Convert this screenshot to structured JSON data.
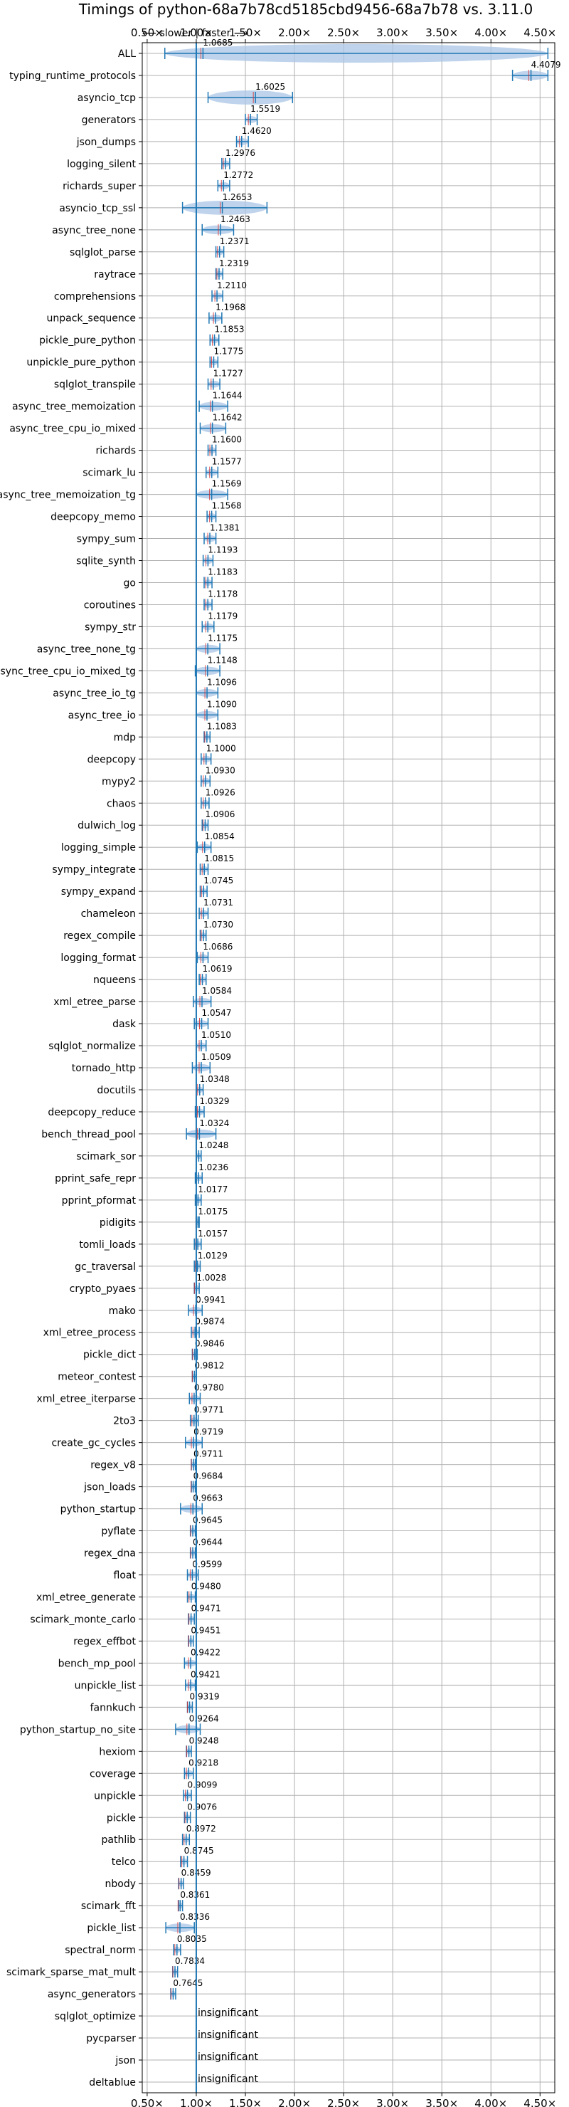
{
  "chart_data": {
    "type": "violin",
    "title": "Timings of python-68a7b78cd5185cbd9456-68a7b78 vs. 3.11.0",
    "subtitle": "⟵ slower  |  faster ⟶",
    "xlabel": "",
    "ylabel": "",
    "xlim": [
      0.45,
      4.65
    ],
    "xticks": [
      0.5,
      1.0,
      1.5,
      2.0,
      2.5,
      3.0,
      3.5,
      4.0,
      4.5
    ],
    "xtick_labels": [
      "0.50×",
      "1.00×",
      "1.50×",
      "2.00×",
      "2.50×",
      "3.00×",
      "3.50×",
      "4.00×",
      "4.50×"
    ],
    "reference_line": 1.0,
    "grid": true,
    "insignificant_label": "insignificant",
    "benchmarks": [
      {
        "name": "ALL",
        "value": 1.0685,
        "label": "1.0685",
        "lo": 0.68,
        "hi": 4.58
      },
      {
        "name": "typing_runtime_protocols",
        "value": 4.4079,
        "label": "4.4079",
        "lo": 4.22,
        "hi": 4.58
      },
      {
        "name": "asyncio_tcp",
        "value": 1.6025,
        "label": "1.6025",
        "lo": 1.12,
        "hi": 1.98
      },
      {
        "name": "generators",
        "value": 1.5519,
        "label": "1.5519",
        "lo": 1.5,
        "hi": 1.62
      },
      {
        "name": "json_dumps",
        "value": 1.462,
        "label": "1.4620",
        "lo": 1.41,
        "hi": 1.53
      },
      {
        "name": "logging_silent",
        "value": 1.2976,
        "label": "1.2976",
        "lo": 1.26,
        "hi": 1.34
      },
      {
        "name": "richards_super",
        "value": 1.2772,
        "label": "1.2772",
        "lo": 1.22,
        "hi": 1.34
      },
      {
        "name": "asyncio_tcp_ssl",
        "value": 1.2653,
        "label": "1.2653",
        "lo": 0.86,
        "hi": 1.72
      },
      {
        "name": "async_tree_none",
        "value": 1.2463,
        "label": "1.2463",
        "lo": 1.06,
        "hi": 1.38
      },
      {
        "name": "sqlglot_parse",
        "value": 1.2371,
        "label": "1.2371",
        "lo": 1.2,
        "hi": 1.28
      },
      {
        "name": "raytrace",
        "value": 1.2319,
        "label": "1.2319",
        "lo": 1.2,
        "hi": 1.27
      },
      {
        "name": "comprehensions",
        "value": 1.211,
        "label": "1.2110",
        "lo": 1.16,
        "hi": 1.27
      },
      {
        "name": "unpack_sequence",
        "value": 1.1968,
        "label": "1.1968",
        "lo": 1.13,
        "hi": 1.26
      },
      {
        "name": "pickle_pure_python",
        "value": 1.1853,
        "label": "1.1853",
        "lo": 1.14,
        "hi": 1.23
      },
      {
        "name": "unpickle_pure_python",
        "value": 1.1775,
        "label": "1.1775",
        "lo": 1.14,
        "hi": 1.22
      },
      {
        "name": "sqlglot_transpile",
        "value": 1.1727,
        "label": "1.1727",
        "lo": 1.12,
        "hi": 1.24
      },
      {
        "name": "async_tree_memoization",
        "value": 1.1644,
        "label": "1.1644",
        "lo": 1.03,
        "hi": 1.32
      },
      {
        "name": "async_tree_cpu_io_mixed",
        "value": 1.1642,
        "label": "1.1642",
        "lo": 1.04,
        "hi": 1.3
      },
      {
        "name": "richards",
        "value": 1.16,
        "label": "1.1600",
        "lo": 1.12,
        "hi": 1.2
      },
      {
        "name": "scimark_lu",
        "value": 1.1577,
        "label": "1.1577",
        "lo": 1.1,
        "hi": 1.22
      },
      {
        "name": "async_tree_memoization_tg",
        "value": 1.1569,
        "label": "1.1569",
        "lo": 1.0,
        "hi": 1.32
      },
      {
        "name": "deepcopy_memo",
        "value": 1.1568,
        "label": "1.1568",
        "lo": 1.11,
        "hi": 1.2
      },
      {
        "name": "sympy_sum",
        "value": 1.1381,
        "label": "1.1381",
        "lo": 1.08,
        "hi": 1.2
      },
      {
        "name": "sqlite_synth",
        "value": 1.1193,
        "label": "1.1193",
        "lo": 1.07,
        "hi": 1.17
      },
      {
        "name": "go",
        "value": 1.1183,
        "label": "1.1183",
        "lo": 1.08,
        "hi": 1.16
      },
      {
        "name": "coroutines",
        "value": 1.1178,
        "label": "1.1178",
        "lo": 1.08,
        "hi": 1.16
      },
      {
        "name": "sympy_str",
        "value": 1.1179,
        "label": "1.1179",
        "lo": 1.06,
        "hi": 1.18
      },
      {
        "name": "async_tree_none_tg",
        "value": 1.1175,
        "label": "1.1175",
        "lo": 1.0,
        "hi": 1.24
      },
      {
        "name": "async_tree_cpu_io_mixed_tg",
        "value": 1.1148,
        "label": "1.1148",
        "lo": 0.99,
        "hi": 1.24
      },
      {
        "name": "async_tree_io_tg",
        "value": 1.1096,
        "label": "1.1096",
        "lo": 1.0,
        "hi": 1.22
      },
      {
        "name": "async_tree_io",
        "value": 1.109,
        "label": "1.1090",
        "lo": 1.0,
        "hi": 1.22
      },
      {
        "name": "mdp",
        "value": 1.1083,
        "label": "1.1083",
        "lo": 1.08,
        "hi": 1.14
      },
      {
        "name": "deepcopy",
        "value": 1.1,
        "label": "1.1000",
        "lo": 1.05,
        "hi": 1.15
      },
      {
        "name": "mypy2",
        "value": 1.093,
        "label": "1.0930",
        "lo": 1.05,
        "hi": 1.14
      },
      {
        "name": "chaos",
        "value": 1.0926,
        "label": "1.0926",
        "lo": 1.05,
        "hi": 1.13
      },
      {
        "name": "dulwich_log",
        "value": 1.0906,
        "label": "1.0906",
        "lo": 1.06,
        "hi": 1.12
      },
      {
        "name": "logging_simple",
        "value": 1.0854,
        "label": "1.0854",
        "lo": 1.01,
        "hi": 1.15
      },
      {
        "name": "sympy_integrate",
        "value": 1.0815,
        "label": "1.0815",
        "lo": 1.04,
        "hi": 1.12
      },
      {
        "name": "sympy_expand",
        "value": 1.0745,
        "label": "1.0745",
        "lo": 1.04,
        "hi": 1.11
      },
      {
        "name": "chameleon",
        "value": 1.0731,
        "label": "1.0731",
        "lo": 1.03,
        "hi": 1.12
      },
      {
        "name": "regex_compile",
        "value": 1.073,
        "label": "1.0730",
        "lo": 1.04,
        "hi": 1.1
      },
      {
        "name": "logging_format",
        "value": 1.0686,
        "label": "1.0686",
        "lo": 1.01,
        "hi": 1.12
      },
      {
        "name": "nqueens",
        "value": 1.0619,
        "label": "1.0619",
        "lo": 1.03,
        "hi": 1.1
      },
      {
        "name": "xml_etree_parse",
        "value": 1.0584,
        "label": "1.0584",
        "lo": 0.97,
        "hi": 1.15
      },
      {
        "name": "dask",
        "value": 1.0547,
        "label": "1.0547",
        "lo": 0.98,
        "hi": 1.12
      },
      {
        "name": "sqlglot_normalize",
        "value": 1.051,
        "label": "1.0510",
        "lo": 1.0,
        "hi": 1.1
      },
      {
        "name": "tornado_http",
        "value": 1.0509,
        "label": "1.0509",
        "lo": 0.96,
        "hi": 1.14
      },
      {
        "name": "docutils",
        "value": 1.0348,
        "label": "1.0348",
        "lo": 1.0,
        "hi": 1.07
      },
      {
        "name": "deepcopy_reduce",
        "value": 1.0329,
        "label": "1.0329",
        "lo": 0.99,
        "hi": 1.08
      },
      {
        "name": "bench_thread_pool",
        "value": 1.0324,
        "label": "1.0324",
        "lo": 0.9,
        "hi": 1.2
      },
      {
        "name": "scimark_sor",
        "value": 1.0248,
        "label": "1.0248",
        "lo": 1.0,
        "hi": 1.05
      },
      {
        "name": "pprint_safe_repr",
        "value": 1.0236,
        "label": "1.0236",
        "lo": 0.99,
        "hi": 1.06
      },
      {
        "name": "pprint_pformat",
        "value": 1.0177,
        "label": "1.0177",
        "lo": 0.99,
        "hi": 1.05
      },
      {
        "name": "pidigits",
        "value": 1.0175,
        "label": "1.0175",
        "lo": 1.0,
        "hi": 1.03
      },
      {
        "name": "tomli_loads",
        "value": 1.0157,
        "label": "1.0157",
        "lo": 0.98,
        "hi": 1.05
      },
      {
        "name": "gc_traversal",
        "value": 1.0129,
        "label": "1.0129",
        "lo": 0.98,
        "hi": 1.04
      },
      {
        "name": "crypto_pyaes",
        "value": 1.0028,
        "label": "1.0028",
        "lo": 0.98,
        "hi": 1.03
      },
      {
        "name": "mako",
        "value": 0.9941,
        "label": "0.9941",
        "lo": 0.92,
        "hi": 1.06
      },
      {
        "name": "xml_etree_process",
        "value": 0.9874,
        "label": "0.9874",
        "lo": 0.95,
        "hi": 1.03
      },
      {
        "name": "pickle_dict",
        "value": 0.9846,
        "label": "0.9846",
        "lo": 0.96,
        "hi": 1.01
      },
      {
        "name": "meteor_contest",
        "value": 0.9812,
        "label": "0.9812",
        "lo": 0.96,
        "hi": 1.0
      },
      {
        "name": "xml_etree_iterparse",
        "value": 0.978,
        "label": "0.9780",
        "lo": 0.93,
        "hi": 1.04
      },
      {
        "name": "2to3",
        "value": 0.9771,
        "label": "0.9771",
        "lo": 0.94,
        "hi": 1.02
      },
      {
        "name": "create_gc_cycles",
        "value": 0.9719,
        "label": "0.9719",
        "lo": 0.89,
        "hi": 1.06
      },
      {
        "name": "regex_v8",
        "value": 0.9711,
        "label": "0.9711",
        "lo": 0.95,
        "hi": 0.99
      },
      {
        "name": "json_loads",
        "value": 0.9684,
        "label": "0.9684",
        "lo": 0.95,
        "hi": 0.99
      },
      {
        "name": "python_startup",
        "value": 0.9663,
        "label": "0.9663",
        "lo": 0.84,
        "hi": 1.06
      },
      {
        "name": "pyflate",
        "value": 0.9645,
        "label": "0.9645",
        "lo": 0.94,
        "hi": 0.99
      },
      {
        "name": "regex_dna",
        "value": 0.9644,
        "label": "0.9644",
        "lo": 0.94,
        "hi": 0.99
      },
      {
        "name": "float",
        "value": 0.9599,
        "label": "0.9599",
        "lo": 0.91,
        "hi": 1.02
      },
      {
        "name": "xml_etree_generate",
        "value": 0.948,
        "label": "0.9480",
        "lo": 0.91,
        "hi": 0.99
      },
      {
        "name": "scimark_monte_carlo",
        "value": 0.9471,
        "label": "0.9471",
        "lo": 0.92,
        "hi": 0.98
      },
      {
        "name": "regex_effbot",
        "value": 0.9451,
        "label": "0.9451",
        "lo": 0.92,
        "hi": 0.97
      },
      {
        "name": "bench_mp_pool",
        "value": 0.9422,
        "label": "0.9422",
        "lo": 0.88,
        "hi": 1.0
      },
      {
        "name": "unpickle_list",
        "value": 0.9421,
        "label": "0.9421",
        "lo": 0.89,
        "hi": 0.99
      },
      {
        "name": "fannkuch",
        "value": 0.9319,
        "label": "0.9319",
        "lo": 0.91,
        "hi": 0.96
      },
      {
        "name": "python_startup_no_site",
        "value": 0.9264,
        "label": "0.9264",
        "lo": 0.79,
        "hi": 1.04
      },
      {
        "name": "hexiom",
        "value": 0.9248,
        "label": "0.9248",
        "lo": 0.9,
        "hi": 0.95
      },
      {
        "name": "coverage",
        "value": 0.9218,
        "label": "0.9218",
        "lo": 0.88,
        "hi": 0.97
      },
      {
        "name": "unpickle",
        "value": 0.9099,
        "label": "0.9099",
        "lo": 0.87,
        "hi": 0.95
      },
      {
        "name": "pickle",
        "value": 0.9076,
        "label": "0.9076",
        "lo": 0.88,
        "hi": 0.94
      },
      {
        "name": "pathlib",
        "value": 0.8972,
        "label": "0.8972",
        "lo": 0.86,
        "hi": 0.93
      },
      {
        "name": "telco",
        "value": 0.8745,
        "label": "0.8745",
        "lo": 0.84,
        "hi": 0.91
      },
      {
        "name": "nbody",
        "value": 0.8459,
        "label": "0.8459",
        "lo": 0.82,
        "hi": 0.87
      },
      {
        "name": "scimark_fft",
        "value": 0.8361,
        "label": "0.8361",
        "lo": 0.82,
        "hi": 0.86
      },
      {
        "name": "pickle_list",
        "value": 0.8336,
        "label": "0.8336",
        "lo": 0.69,
        "hi": 0.98
      },
      {
        "name": "spectral_norm",
        "value": 0.8035,
        "label": "0.8035",
        "lo": 0.77,
        "hi": 0.84
      },
      {
        "name": "scimark_sparse_mat_mult",
        "value": 0.7834,
        "label": "0.7834",
        "lo": 0.76,
        "hi": 0.81
      },
      {
        "name": "async_generators",
        "value": 0.7645,
        "label": "0.7645",
        "lo": 0.74,
        "hi": 0.79
      },
      {
        "name": "sqlglot_optimize",
        "value": null,
        "label": ""
      },
      {
        "name": "pycparser",
        "value": null,
        "label": ""
      },
      {
        "name": "json",
        "value": null,
        "label": ""
      },
      {
        "name": "deltablue",
        "value": null,
        "label": ""
      }
    ]
  },
  "colors": {
    "violin": "#a9c6e6",
    "violin_edge": "#7aa3cf",
    "line": "#1f77b4",
    "median": "#d62728",
    "grid": "#b0b0b0",
    "axis": "#000000"
  }
}
